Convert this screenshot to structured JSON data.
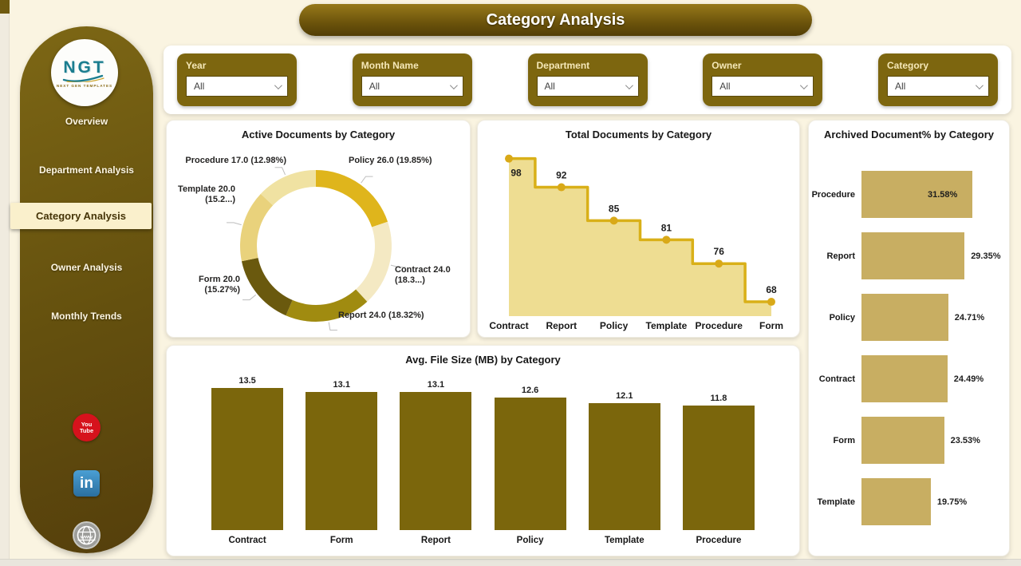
{
  "page": {
    "title": "Category Analysis"
  },
  "sidebar": {
    "logo": {
      "text": "NGT",
      "caption": "NEXT GEN TEMPLATES"
    },
    "items": [
      {
        "label": "Overview",
        "active": false
      },
      {
        "label": "Department Analysis",
        "active": false
      },
      {
        "label": "Category Analysis",
        "active": true
      },
      {
        "label": "Owner Analysis",
        "active": false
      },
      {
        "label": "Monthly Trends",
        "active": false
      }
    ],
    "social": {
      "youtube": {
        "line1": "You",
        "line2": "Tube"
      },
      "linkedin": "in",
      "website": "www"
    }
  },
  "filters": {
    "items": [
      {
        "label": "Year",
        "value": "All"
      },
      {
        "label": "Month Name",
        "value": "All"
      },
      {
        "label": "Department",
        "value": "All"
      },
      {
        "label": "Owner",
        "value": "All"
      },
      {
        "label": "Category",
        "value": "All"
      }
    ]
  },
  "colors": {
    "primary_olive": "#75600f",
    "olive_dark": "#5a4608",
    "background_cream": "#faf4e1",
    "active_nav_bg": "#faf0cc",
    "text_dark": "#252423",
    "step_line": "#d9b018",
    "step_fill": "#eedd92",
    "bar_olive": "#7b660c",
    "hbar_tan": "#c8ae62",
    "youtube_red": "#d6121c",
    "linkedin_blue": "#3080b5",
    "globe_gray": "#9d9d9a"
  },
  "chart_data": [
    {
      "id": "active-documents-donut",
      "type": "pie",
      "title": "Active Documents by Category",
      "labels": [
        "Policy",
        "Contract",
        "Report",
        "Form",
        "Template",
        "Procedure"
      ],
      "values": [
        26,
        24,
        24,
        20,
        20,
        17
      ],
      "percents": [
        19.85,
        18.32,
        18.32,
        15.27,
        15.27,
        12.98
      ],
      "display_labels": [
        "Policy 26.0 (19.85%)",
        "Contract 24.0 (18.3...)",
        "Report 24.0 (18.32%)",
        "Form 20.0 (15.27%)",
        "Template 20.0 (15.2...)",
        "Procedure 17.0 (12.98%)"
      ],
      "colors": [
        "#dfb51c",
        "#f4e9c3",
        "#a08b10",
        "#6a590e",
        "#e9d27c",
        "#f0e2a2"
      ],
      "donut_hole": true
    },
    {
      "id": "total-documents-step",
      "type": "area",
      "subtype": "step",
      "title": "Total Documents by Category",
      "categories": [
        "Contract",
        "Report",
        "Policy",
        "Template",
        "Procedure",
        "Form"
      ],
      "values": [
        98,
        92,
        85,
        81,
        76,
        68
      ],
      "ylim": [
        65,
        100
      ],
      "grid": false,
      "legend": "none"
    },
    {
      "id": "avg-file-size-bars",
      "type": "bar",
      "title": "Avg. File Size (MB) by Category",
      "categories": [
        "Contract",
        "Form",
        "Report",
        "Policy",
        "Template",
        "Procedure"
      ],
      "values": [
        13.5,
        13.1,
        13.1,
        12.6,
        12.1,
        11.8
      ],
      "value_labels": [
        "13.5",
        "13.1",
        "13.1",
        "12.6",
        "12.1",
        "11.8"
      ],
      "ylim": [
        0,
        13.5
      ],
      "grid": false,
      "legend": "none"
    },
    {
      "id": "archived-percent-hbars",
      "type": "bar",
      "orientation": "horizontal",
      "title": "Archived Document% by Category",
      "categories": [
        "Procedure",
        "Report",
        "Policy",
        "Contract",
        "Form",
        "Template"
      ],
      "values": [
        31.58,
        29.35,
        24.71,
        24.49,
        23.53,
        19.75
      ],
      "value_labels": [
        "31.58%",
        "29.35%",
        "24.71%",
        "24.49%",
        "23.53%",
        "19.75%"
      ],
      "xlim": [
        0,
        31.58
      ],
      "grid": false,
      "legend": "none"
    }
  ]
}
